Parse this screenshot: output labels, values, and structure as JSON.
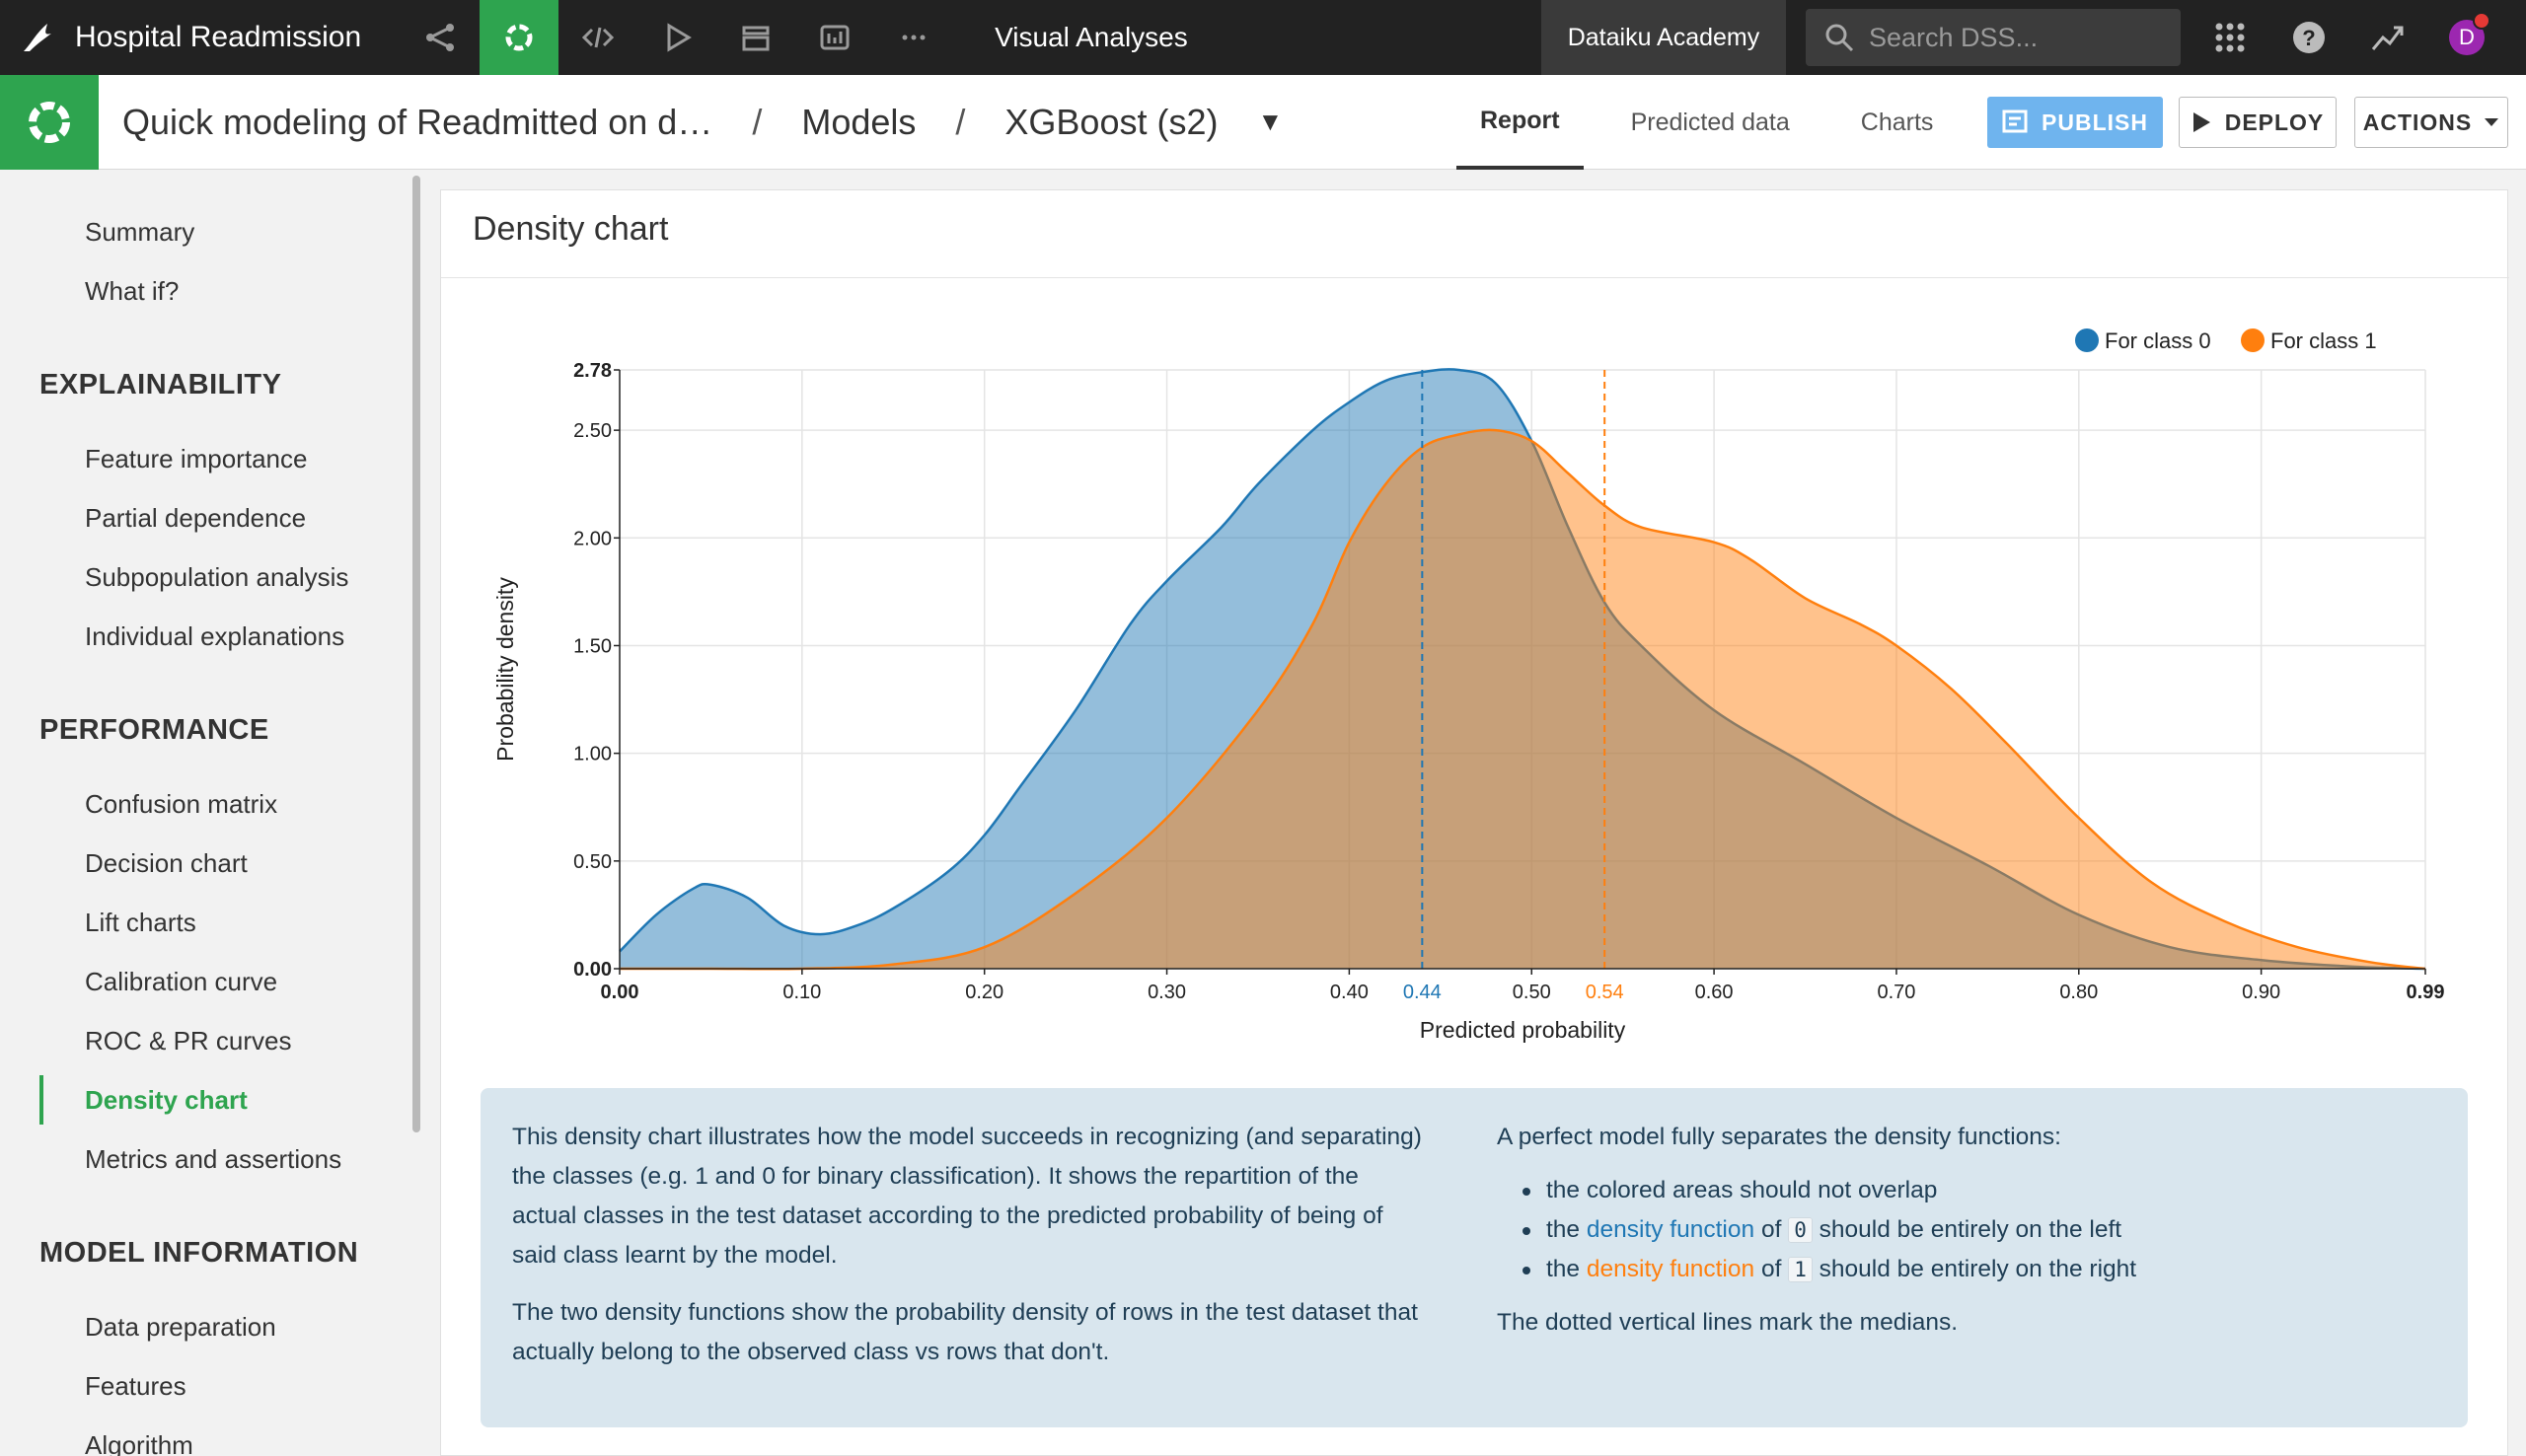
{
  "topbar": {
    "project": "Hospital Readmission",
    "section": "Visual Analyses",
    "academy": "Dataiku Academy",
    "search_placeholder": "Search DSS...",
    "avatar_initial": "D"
  },
  "subbar": {
    "crumb1": "Quick modeling of Readmitted on d…",
    "crumb2": "Models",
    "crumb3": "XGBoost (s2)",
    "sep": "/",
    "tabs": [
      "Report",
      "Predicted data",
      "Charts"
    ],
    "publish": "PUBLISH",
    "deploy": "DEPLOY",
    "actions": "ACTIONS"
  },
  "sidebar": {
    "top_items": [
      "Summary",
      "What if?"
    ],
    "explainability_title": "EXPLAINABILITY",
    "explainability_items": [
      "Feature importance",
      "Partial dependence",
      "Subpopulation analysis",
      "Individual explanations"
    ],
    "performance_title": "PERFORMANCE",
    "performance_items": [
      "Confusion matrix",
      "Decision chart",
      "Lift charts",
      "Calibration curve",
      "ROC & PR curves",
      "Density chart",
      "Metrics and assertions"
    ],
    "model_info_title": "MODEL INFORMATION",
    "model_info_items": [
      "Data preparation",
      "Features",
      "Algorithm"
    ],
    "active": "Density chart"
  },
  "panel": {
    "title": "Density chart"
  },
  "chart_data": {
    "type": "area",
    "xlabel": "Predicted probability",
    "ylabel": "Probability density",
    "xlim": [
      0.0,
      0.99
    ],
    "ylim": [
      0.0,
      2.78
    ],
    "x_ticks": [
      "0.00",
      "0.10",
      "0.20",
      "0.30",
      "0.40",
      "0.50",
      "0.60",
      "0.70",
      "0.80",
      "0.90",
      "0.99"
    ],
    "y_ticks": [
      "0.00",
      "0.50",
      "1.00",
      "1.50",
      "2.00",
      "2.50",
      "2.78"
    ],
    "legend_position": "top-right",
    "colors": {
      "class0": "#1f77b4",
      "class1": "#ff7f0e"
    },
    "series": [
      {
        "name": "For class 0",
        "median": 0.44,
        "median_label": "0.44",
        "x": [
          0.0,
          0.02,
          0.04,
          0.05,
          0.07,
          0.09,
          0.11,
          0.13,
          0.15,
          0.18,
          0.2,
          0.22,
          0.25,
          0.28,
          0.3,
          0.33,
          0.35,
          0.38,
          0.4,
          0.42,
          0.44,
          0.46,
          0.48,
          0.5,
          0.52,
          0.54,
          0.56,
          0.6,
          0.65,
          0.7,
          0.75,
          0.8,
          0.85,
          0.9,
          0.95,
          0.99
        ],
        "values": [
          0.08,
          0.25,
          0.37,
          0.39,
          0.33,
          0.2,
          0.16,
          0.2,
          0.28,
          0.45,
          0.62,
          0.85,
          1.2,
          1.6,
          1.8,
          2.05,
          2.25,
          2.5,
          2.63,
          2.73,
          2.77,
          2.78,
          2.72,
          2.45,
          2.05,
          1.7,
          1.5,
          1.2,
          0.95,
          0.7,
          0.48,
          0.25,
          0.1,
          0.04,
          0.01,
          0.0
        ]
      },
      {
        "name": "For class 1",
        "median": 0.54,
        "median_label": "0.54",
        "x": [
          0.0,
          0.05,
          0.1,
          0.15,
          0.2,
          0.25,
          0.3,
          0.35,
          0.38,
          0.4,
          0.42,
          0.44,
          0.46,
          0.48,
          0.5,
          0.52,
          0.54,
          0.56,
          0.6,
          0.62,
          0.65,
          0.68,
          0.7,
          0.73,
          0.76,
          0.8,
          0.84,
          0.88,
          0.92,
          0.96,
          0.99
        ],
        "values": [
          0.0,
          0.0,
          0.0,
          0.02,
          0.1,
          0.35,
          0.7,
          1.2,
          1.6,
          1.98,
          2.25,
          2.42,
          2.48,
          2.5,
          2.45,
          2.3,
          2.15,
          2.05,
          1.98,
          1.9,
          1.72,
          1.6,
          1.5,
          1.3,
          1.05,
          0.7,
          0.4,
          0.22,
          0.1,
          0.03,
          0.0
        ]
      }
    ]
  },
  "info": {
    "p1": "This density chart illustrates how the model succeeds in recognizing (and separating) the classes (e.g. 1 and 0 for binary classification). It shows the repartition of the actual classes in the test dataset according to the predicted probability of being of said class learnt by the model.",
    "p2": "The two density functions show the probability density of rows in the test dataset that actually belong to the observed class vs rows that don't.",
    "p3": "A perfect model fully separates the density functions:",
    "b1": "the colored areas should not overlap",
    "b2_pre": "the",
    "b2_link": "density function",
    "b2_mid": "of",
    "b2_code": "0",
    "b2_post": "should be entirely on the left",
    "b3_pre": "the",
    "b3_link": "density function",
    "b3_mid": "of",
    "b3_code": "1",
    "b3_post": "should be entirely on the right",
    "p4": "The dotted vertical lines mark the medians."
  }
}
